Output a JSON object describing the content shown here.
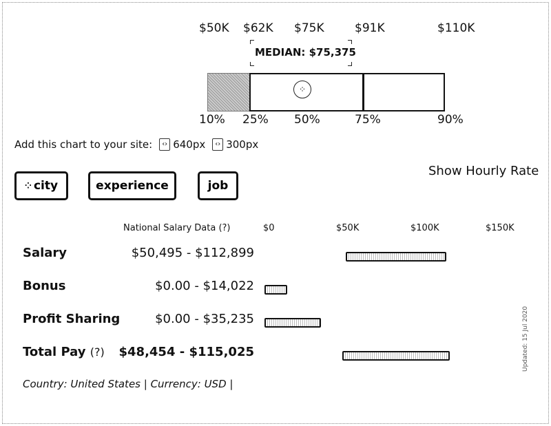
{
  "percentiles": {
    "values": [
      "$50K",
      "$62K",
      "$75K",
      "$91K",
      "$110K"
    ],
    "labels": [
      "10%",
      "25%",
      "50%",
      "75%",
      "90%"
    ],
    "median_label": "MEDIAN: $75,375"
  },
  "embed": {
    "label": "Add this chart to your site:",
    "option_large": "640px",
    "option_small": "300px"
  },
  "filters": {
    "city": "city",
    "experience": "experience",
    "job": "job"
  },
  "hourly_toggle": "Show Hourly Rate",
  "table": {
    "source_label": "National Salary Data (?)",
    "axis_ticks": [
      "$0",
      "$50K",
      "$100K",
      "$150K"
    ],
    "axis_max": 150000,
    "rows": [
      {
        "label": "Salary",
        "range": "$50,495 - $112,899",
        "min": 50495,
        "max": 112899
      },
      {
        "label": "Bonus",
        "range": "$0.00 - $14,022",
        "min": 0,
        "max": 14022
      },
      {
        "label": "Profit Sharing",
        "range": "$0.00 - $35,235",
        "min": 0,
        "max": 35235
      },
      {
        "label": "Total Pay",
        "label_suffix": "(?)",
        "range": "$48,454 - $115,025",
        "min": 48454,
        "max": 115025
      }
    ]
  },
  "footer": "Country: United States | Currency: USD |",
  "side_note": "Updated: 15 Jul 2020"
}
